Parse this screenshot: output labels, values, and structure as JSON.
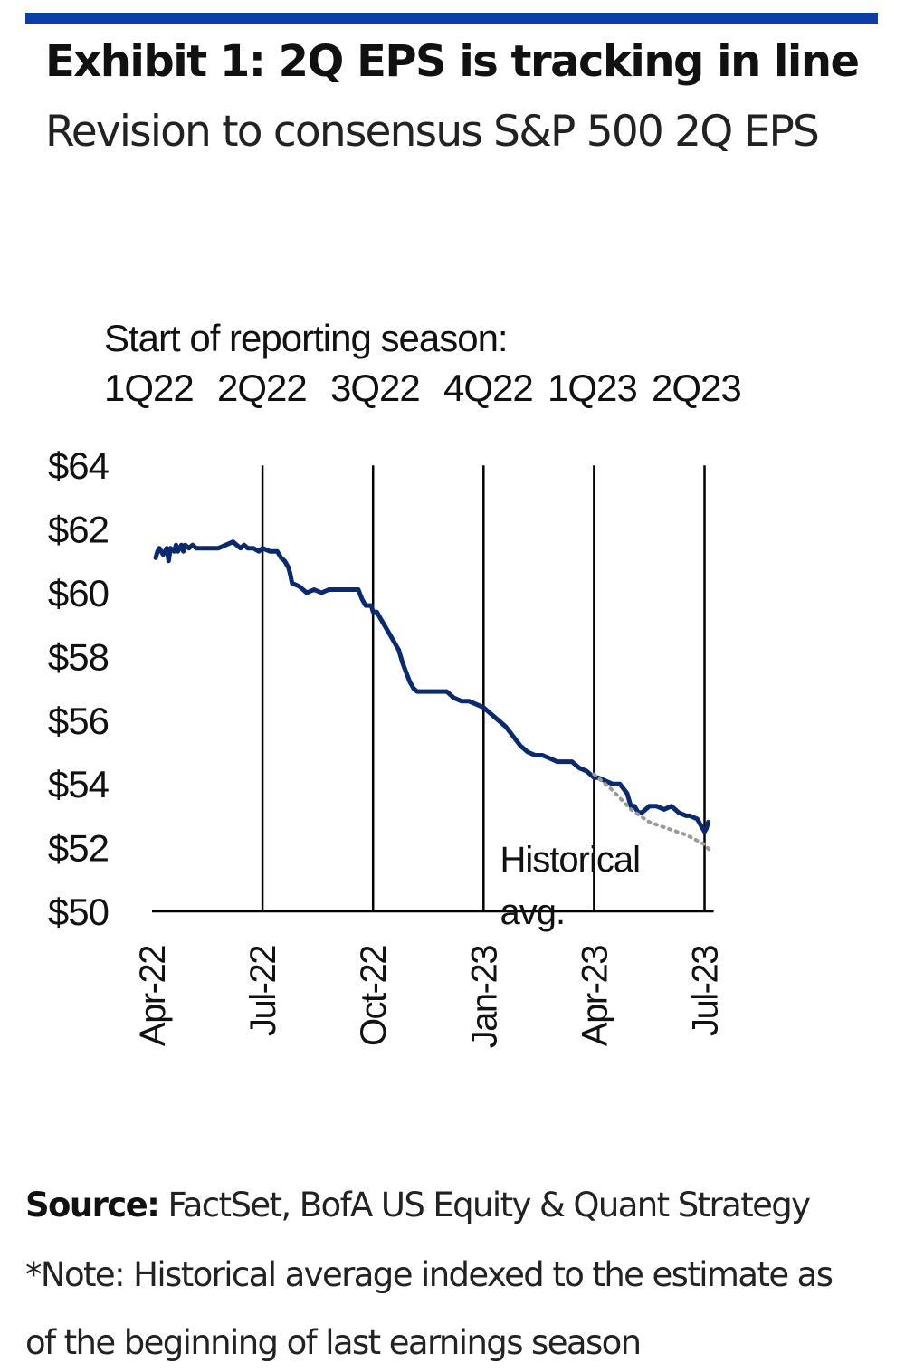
{
  "header": {
    "title": "Exhibit 1: 2Q EPS is tracking in line",
    "subtitle": "Revision to consensus S&P 500 2Q EPS"
  },
  "colors": {
    "accent_bar": "#0b3fa6",
    "series": "#0b2a6e",
    "historical": "#9a9a9a",
    "axis": "#000000"
  },
  "chart_data": {
    "type": "line",
    "reporting_season": {
      "heading": "Start of reporting season:",
      "labels": [
        "1Q22",
        "2Q22",
        "3Q22",
        "4Q22",
        "1Q23",
        "2Q23"
      ],
      "marker_months": [
        3,
        6,
        9,
        12,
        15
      ]
    },
    "x_tick_labels": [
      "Apr-22",
      "Jul-22",
      "Oct-22",
      "Jan-23",
      "Apr-23",
      "Jul-23"
    ],
    "x_tick_months": [
      0,
      3,
      6,
      9,
      12,
      15
    ],
    "x_range": [
      0,
      15.15
    ],
    "y_tick_labels": [
      "$64",
      "$62",
      "$60",
      "$58",
      "$56",
      "$54",
      "$52",
      "$50"
    ],
    "y_tick_values": [
      64,
      62,
      60,
      58,
      56,
      54,
      52,
      50
    ],
    "ylim": [
      50,
      64
    ],
    "series": [
      {
        "name": "Consensus S&P 500 2Q EPS",
        "style": "solid",
        "x": [
          0.1,
          0.15,
          0.2,
          0.3,
          0.4,
          0.45,
          0.5,
          0.6,
          0.65,
          0.7,
          0.8,
          0.85,
          0.9,
          1.0,
          1.1,
          1.2,
          1.4,
          1.6,
          1.8,
          2.0,
          2.2,
          2.4,
          2.5,
          2.6,
          2.75,
          2.9,
          3.0,
          3.2,
          3.4,
          3.5,
          3.6,
          3.7,
          3.75,
          3.8,
          4.0,
          4.2,
          4.4,
          4.6,
          4.8,
          5.0,
          5.2,
          5.4,
          5.6,
          5.7,
          5.8,
          5.95,
          6.0,
          6.1,
          6.2,
          6.3,
          6.4,
          6.5,
          6.6,
          6.7,
          6.8,
          6.9,
          7.0,
          7.1,
          7.2,
          7.4,
          7.6,
          7.8,
          8.0,
          8.2,
          8.4,
          8.6,
          8.8,
          9.0,
          9.2,
          9.4,
          9.6,
          9.8,
          10.0,
          10.2,
          10.4,
          10.6,
          10.8,
          11.0,
          11.2,
          11.4,
          11.6,
          11.8,
          12.0,
          12.1,
          12.3,
          12.5,
          12.7,
          12.9,
          13.0,
          13.1,
          13.2,
          13.3,
          13.5,
          13.7,
          13.9,
          14.1,
          14.3,
          14.5,
          14.6,
          14.8,
          14.9,
          15.0,
          15.05,
          15.1
        ],
        "y": [
          61.1,
          61.3,
          61.4,
          61.2,
          61.4,
          61.0,
          61.4,
          61.3,
          61.5,
          61.3,
          61.5,
          61.3,
          61.5,
          61.4,
          61.5,
          61.4,
          61.4,
          61.4,
          61.4,
          61.5,
          61.6,
          61.4,
          61.5,
          61.4,
          61.4,
          61.3,
          61.4,
          61.3,
          61.3,
          61.1,
          61.0,
          60.8,
          60.6,
          60.3,
          60.2,
          60.0,
          60.1,
          60.0,
          60.1,
          60.1,
          60.1,
          60.1,
          60.1,
          59.8,
          59.6,
          59.6,
          59.4,
          59.4,
          59.2,
          59.0,
          58.8,
          58.6,
          58.4,
          58.2,
          57.8,
          57.5,
          57.2,
          57.0,
          56.9,
          56.9,
          56.9,
          56.9,
          56.9,
          56.7,
          56.6,
          56.6,
          56.5,
          56.4,
          56.2,
          56.0,
          55.8,
          55.5,
          55.2,
          55.0,
          54.9,
          54.9,
          54.8,
          54.7,
          54.7,
          54.7,
          54.5,
          54.4,
          54.2,
          54.2,
          54.1,
          54.0,
          54.0,
          53.7,
          53.3,
          53.3,
          53.1,
          53.1,
          53.3,
          53.3,
          53.2,
          53.3,
          53.1,
          53.0,
          53.0,
          52.9,
          52.7,
          52.5,
          52.6,
          52.8
        ]
      },
      {
        "name": "Historical avg.",
        "style": "dotted",
        "x": [
          12.0,
          12.5,
          13.0,
          13.5,
          14.0,
          14.5,
          15.0,
          15.15
        ],
        "y": [
          54.3,
          53.8,
          53.2,
          52.8,
          52.6,
          52.4,
          52.1,
          51.9
        ]
      }
    ],
    "annotations": [
      {
        "text_lines": [
          "Historical",
          "avg."
        ],
        "x": 9.3,
        "y": 52.1
      }
    ]
  },
  "footer": {
    "source_label": "Source:",
    "source_text": "FactSet, BofA US Equity & Quant Strategy",
    "note_line1": "*Note: Historical average indexed to the estimate as",
    "note_line2": "of the beginning of last earnings season"
  }
}
